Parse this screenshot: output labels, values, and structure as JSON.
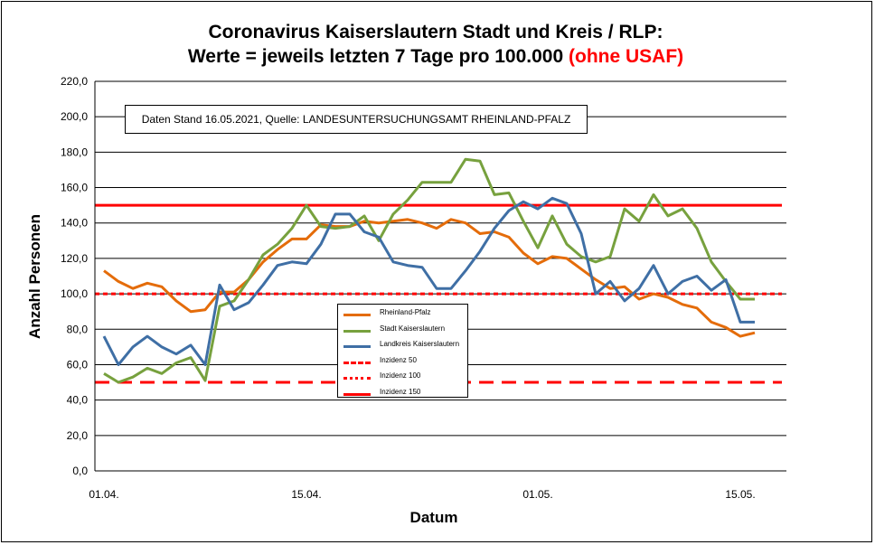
{
  "title": {
    "line1": "Coronavirus Kaiserslautern Stadt und Kreis / RLP:",
    "line2_black": "Werte = jeweils letzten 7 Tage pro 100.000",
    "line2_red": "(ohne USAF)"
  },
  "note": "Daten Stand 16.05.2021, Quelle: LANDESUNTERSUCHUNGSAMT RHEINLAND-PFALZ",
  "colors": {
    "rheinland_pfalz": "#e46c0a",
    "stadt": "#77a13e",
    "landkreis": "#3f6fa5",
    "inzidenz": "#ff0000"
  },
  "chart_data": {
    "type": "line",
    "xlabel": "Datum",
    "ylabel": "Anzahl Personen",
    "ylim": [
      0,
      220
    ],
    "yticks": [
      "0,0",
      "20,0",
      "40,0",
      "60,0",
      "80,0",
      "100,0",
      "120,0",
      "140,0",
      "160,0",
      "180,0",
      "200,0",
      "220,0"
    ],
    "xticks": [
      {
        "label": "01.04.",
        "day": 0
      },
      {
        "label": "15.04.",
        "day": 14
      },
      {
        "label": "01.05.",
        "day": 30
      },
      {
        "label": "15.05.",
        "day": 44
      }
    ],
    "xlim_days": [
      0,
      48
    ],
    "grid": true,
    "legend_position": "center",
    "series": [
      {
        "name": "Rheinland-Pfalz",
        "color": "#e46c0a",
        "start_day": 0,
        "values": [
          113,
          107,
          103,
          106,
          104,
          96,
          90,
          91,
          101,
          101,
          108,
          118,
          125,
          131,
          131,
          139,
          138,
          138,
          141,
          140,
          141,
          142,
          140,
          137,
          142,
          140,
          134,
          135,
          132,
          123,
          117,
          121,
          120,
          114,
          108,
          103,
          104,
          97,
          100,
          98,
          94,
          92,
          84,
          81,
          76,
          78
        ]
      },
      {
        "name": "Stadt Kaiserslautern",
        "color": "#77a13e",
        "start_day": 0,
        "values": [
          55,
          50,
          53,
          58,
          55,
          61,
          64,
          51,
          93,
          96,
          108,
          122,
          128,
          137,
          150,
          138,
          137,
          138,
          144,
          130,
          145,
          153,
          163,
          163,
          163,
          176,
          175,
          156,
          157,
          141,
          126,
          144,
          128,
          121,
          118,
          121,
          148,
          141,
          156,
          144,
          148,
          137,
          118,
          107,
          97,
          97
        ]
      },
      {
        "name": "Landkreis Kaiserslautern",
        "color": "#3f6fa5",
        "start_day": 0,
        "values": [
          76,
          60,
          70,
          76,
          70,
          66,
          71,
          60,
          105,
          91,
          95,
          105,
          116,
          118,
          117,
          128,
          145,
          145,
          135,
          132,
          118,
          116,
          115,
          103,
          103,
          113,
          124,
          137,
          147,
          152,
          148,
          154,
          151,
          134,
          100,
          107,
          96,
          103,
          116,
          100,
          107,
          110,
          102,
          108,
          84,
          84
        ]
      },
      {
        "name": "Inzidenz 50",
        "color": "#ff0000",
        "value": 50,
        "style": "dashed"
      },
      {
        "name": "Inzidenz 100",
        "color": "#ff0000",
        "value": 100,
        "style": "dotted"
      },
      {
        "name": "Inzidenz 150",
        "color": "#ff0000",
        "value": 150,
        "style": "solid"
      }
    ]
  }
}
